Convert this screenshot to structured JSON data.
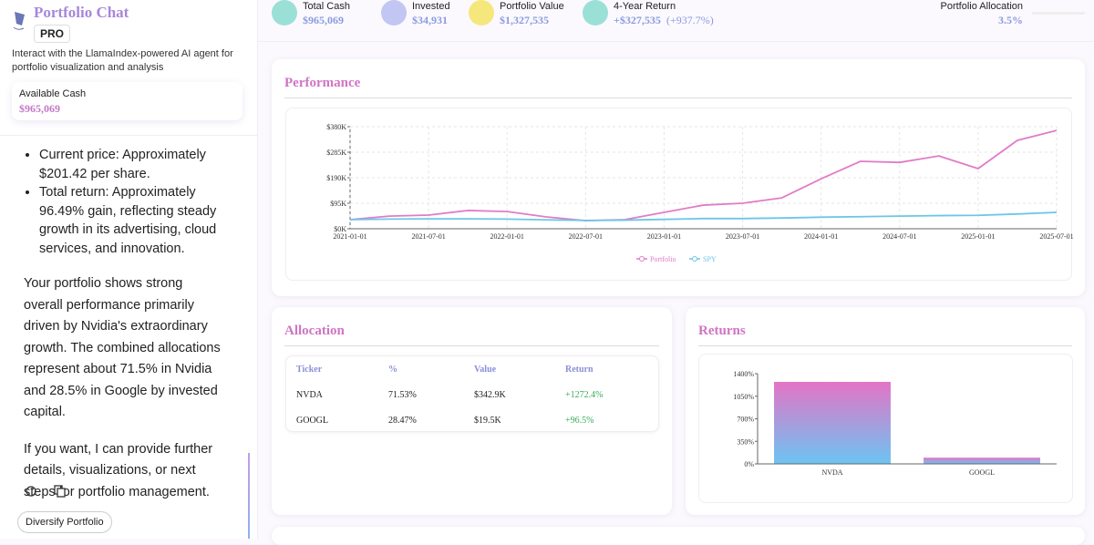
{
  "sidebar": {
    "title": "Portfolio Chat",
    "badge": "PRO",
    "description": "Interact with the LlamaIndex-powered AI agent for portfolio visualization and analysis",
    "cash_label": "Available Cash",
    "cash_value": "$965,069",
    "bullets": [
      "Current price: Approximately $201.42 per share.",
      "Total return: Approximately 96.49% gain, reflecting steady growth in its advertising, cloud services, and innovation."
    ],
    "paragraphs": [
      "Your portfolio shows strong overall performance primarily driven by Nvidia's extraordinary growth. The combined allocations represent about 71.5% in Nvidia and 28.5% in Google by invested capital.",
      "If you want, I can provide further details, visualizations, or next steps for portfolio management."
    ],
    "suggestion": "Diversify Portfolio"
  },
  "stats": [
    {
      "label": "Total Cash",
      "value": "$965,069"
    },
    {
      "label": "Invested",
      "value": "$34,931"
    },
    {
      "label": "Portfolio Value",
      "value": "$1,327,535"
    },
    {
      "label": "4-Year Return",
      "value": "+$327,535",
      "extra": "(+937.7%)"
    },
    {
      "label": "Portfolio Allocation",
      "value": "3.5%"
    }
  ],
  "performance": {
    "title": "Performance",
    "chart_data": {
      "type": "line",
      "categories": [
        "2021-01-01",
        null,
        "2021-07-01",
        null,
        "2022-01-01",
        null,
        "2022-07-01",
        null,
        "2023-01-01",
        null,
        "2023-07-01",
        null,
        "2024-01-01",
        null,
        "2024-07-01",
        null,
        "2025-01-01",
        null,
        "2025-07-01"
      ],
      "series": [
        {
          "name": "Portfolio",
          "color": "#e07cc8",
          "values": [
            34,
            47,
            51,
            68,
            64,
            44,
            30,
            34,
            61,
            88,
            95,
            115,
            186,
            251,
            247,
            271,
            224,
            329,
            366
          ]
        },
        {
          "name": "SPY",
          "color": "#6cc6e8",
          "values": [
            34,
            36,
            37,
            37,
            36,
            33,
            31,
            32,
            35,
            38,
            38,
            40,
            43,
            45,
            47,
            49,
            50,
            55,
            61
          ]
        }
      ],
      "ylim": [
        0,
        380
      ],
      "yticks": [
        {
          "value": 0,
          "label": "$0K"
        },
        {
          "value": 95,
          "label": "$95K"
        },
        {
          "value": 190,
          "label": "$190K"
        },
        {
          "value": 285,
          "label": "$285K"
        },
        {
          "value": 380,
          "label": "$380K"
        }
      ],
      "grid": true,
      "legend": "bottom"
    }
  },
  "allocation": {
    "title": "Allocation",
    "table": {
      "header": [
        "Ticker",
        "%",
        "Value",
        "Return"
      ],
      "rows": [
        [
          "NVDA",
          "71.53%",
          "$342.9K",
          "+1272.4%"
        ],
        [
          "GOOGL",
          "28.47%",
          "$19.5K",
          "+96.5%"
        ]
      ]
    }
  },
  "returns": {
    "title": "Returns",
    "chart_data": {
      "type": "bar",
      "categories": [
        "NVDA",
        "GOOGL"
      ],
      "values": [
        1272.4,
        96.5
      ],
      "ylim": [
        0,
        1400
      ],
      "yticks": [
        {
          "value": 0,
          "label": "0%"
        },
        {
          "value": 350,
          "label": "350%"
        },
        {
          "value": 700,
          "label": "700%"
        },
        {
          "value": 1050,
          "label": "1050%"
        },
        {
          "value": 1400,
          "label": "1400%"
        }
      ]
    }
  }
}
